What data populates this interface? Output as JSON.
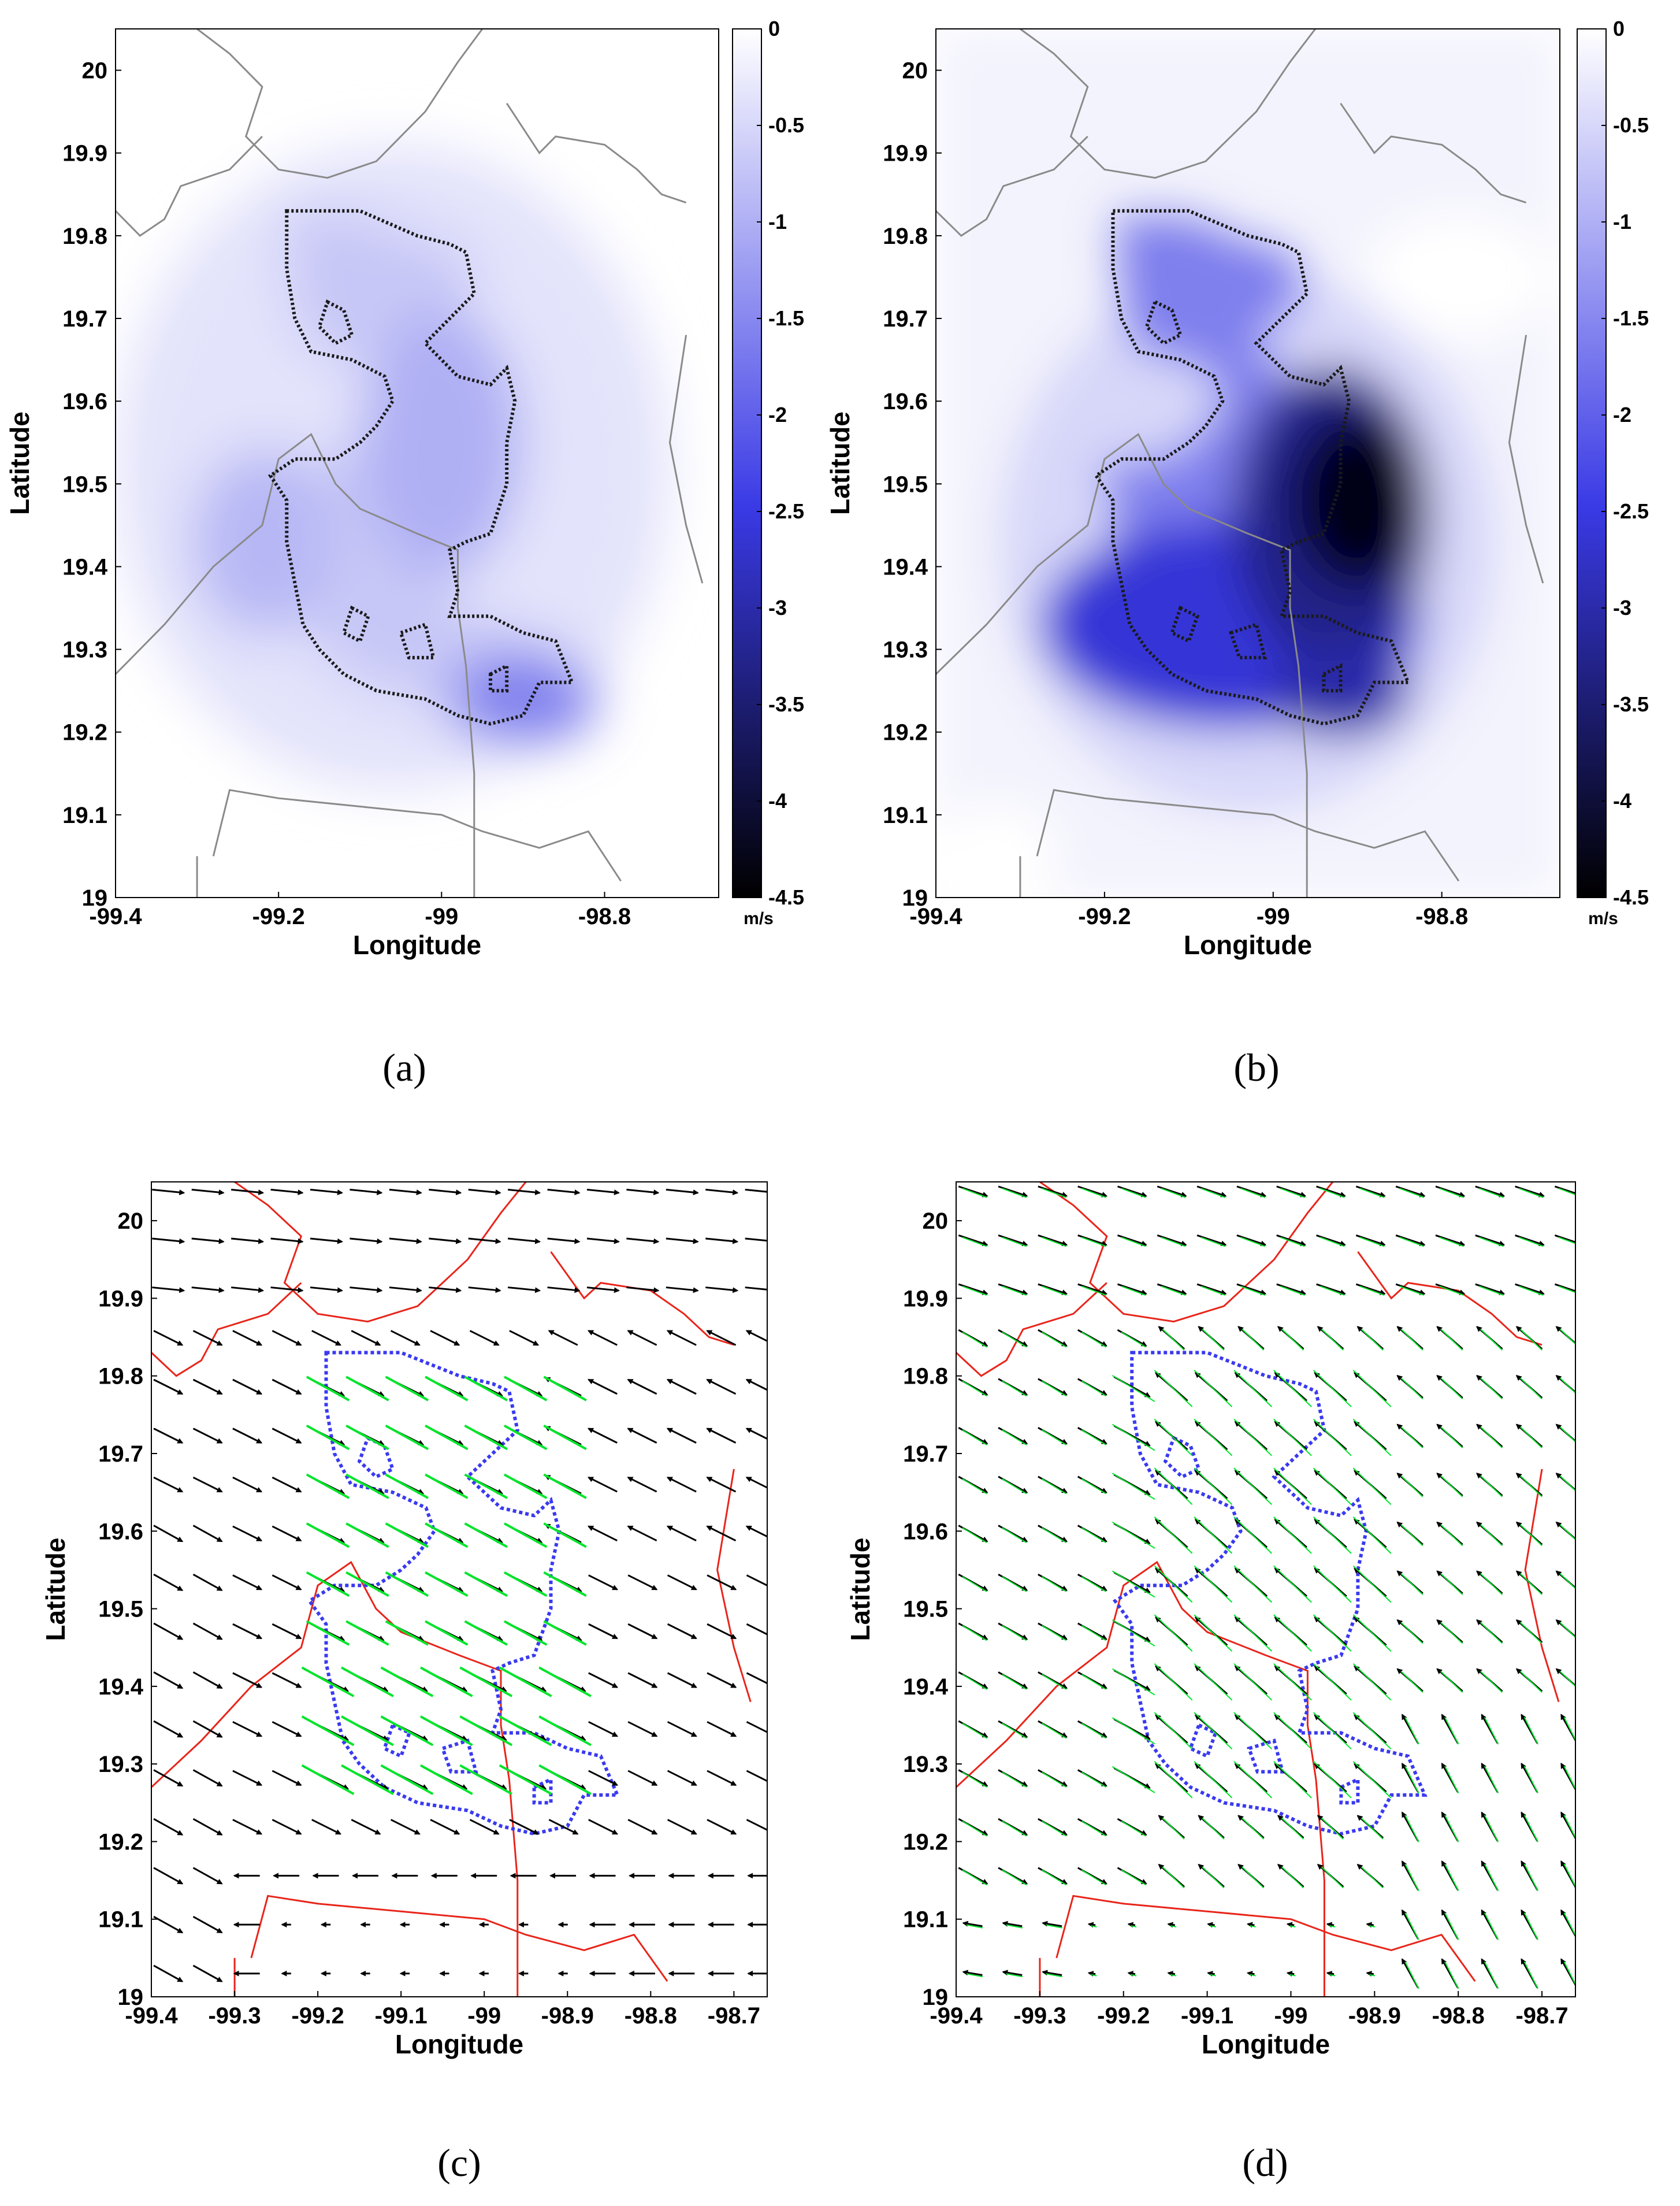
{
  "chart_data": [
    {
      "panel_label": "(a)",
      "type": "heatmap",
      "xlabel": "Longitude",
      "ylabel": "Latitude",
      "xlim": [
        -99.4,
        -98.66
      ],
      "ylim": [
        19.0,
        20.05
      ],
      "xticks": [
        "-99.4",
        "-99.2",
        "-99",
        "-98.8"
      ],
      "yticks": [
        "19",
        "19.1",
        "19.2",
        "19.3",
        "19.4",
        "19.5",
        "19.6",
        "19.7",
        "19.8",
        "19.9",
        "20"
      ],
      "colorbar": {
        "ticks": [
          "0",
          "-0.5",
          "-1",
          "-1.5",
          "-2",
          "-2.5",
          "-3",
          "-3.5",
          "-4",
          "-4.5"
        ],
        "unit": "m/s",
        "range": [
          -4.5,
          0
        ]
      },
      "min_value": -1.6,
      "min_location": {
        "lon": -98.9,
        "lat": 19.24
      },
      "colors": {
        "low": "#000000",
        "mid": "#3a3ae6",
        "high": "#ffffff"
      }
    },
    {
      "panel_label": "(b)",
      "type": "heatmap",
      "xlabel": "Longitude",
      "ylabel": "Latitude",
      "xlim": [
        -99.4,
        -98.66
      ],
      "ylim": [
        19.0,
        20.05
      ],
      "xticks": [
        "-99.4",
        "-99.2",
        "-99",
        "-98.8"
      ],
      "yticks": [
        "19",
        "19.1",
        "19.2",
        "19.3",
        "19.4",
        "19.5",
        "19.6",
        "19.7",
        "19.8",
        "19.9",
        "20"
      ],
      "colorbar": {
        "ticks": [
          "0",
          "-0.5",
          "-1",
          "-1.5",
          "-2",
          "-2.5",
          "-3",
          "-3.5",
          "-4",
          "-4.5"
        ],
        "unit": "m/s",
        "range": [
          -4.5,
          0
        ]
      },
      "min_value": -4.3,
      "min_location": {
        "lon": -98.9,
        "lat": 19.48
      },
      "colors": {
        "low": "#000000",
        "mid": "#3a3ae6",
        "high": "#ffffff"
      }
    },
    {
      "panel_label": "(c)",
      "type": "vector-field",
      "xlabel": "Longitude",
      "ylabel": "Latitude",
      "xlim": [
        -99.4,
        -98.66
      ],
      "ylim": [
        19.0,
        20.05
      ],
      "xticks": [
        "-99.4",
        "-99.3",
        "-99.2",
        "-99.1",
        "-99",
        "-98.9",
        "-98.8",
        "-98.7"
      ],
      "yticks": [
        "19",
        "19.1",
        "19.2",
        "19.3",
        "19.4",
        "19.5",
        "19.6",
        "19.7",
        "19.8",
        "19.9",
        "20"
      ],
      "colors": {
        "arrow_base": "#000000",
        "arrow_new": "#00e52a",
        "border": "#e8251a",
        "urban": "#3a3af0"
      }
    },
    {
      "panel_label": "(d)",
      "type": "vector-field",
      "xlabel": "Longitude",
      "ylabel": "Latitude",
      "xlim": [
        -99.4,
        -98.66
      ],
      "ylim": [
        19.0,
        20.05
      ],
      "xticks": [
        "-99.4",
        "-99.3",
        "-99.2",
        "-99.1",
        "-99",
        "-98.9",
        "-98.8",
        "-98.7"
      ],
      "yticks": [
        "19",
        "19.1",
        "19.2",
        "19.3",
        "19.4",
        "19.5",
        "19.6",
        "19.7",
        "19.8",
        "19.9",
        "20"
      ],
      "colors": {
        "arrow_base": "#000000",
        "arrow_new": "#00e52a",
        "border": "#e8251a",
        "urban": "#3a3af0"
      }
    }
  ]
}
